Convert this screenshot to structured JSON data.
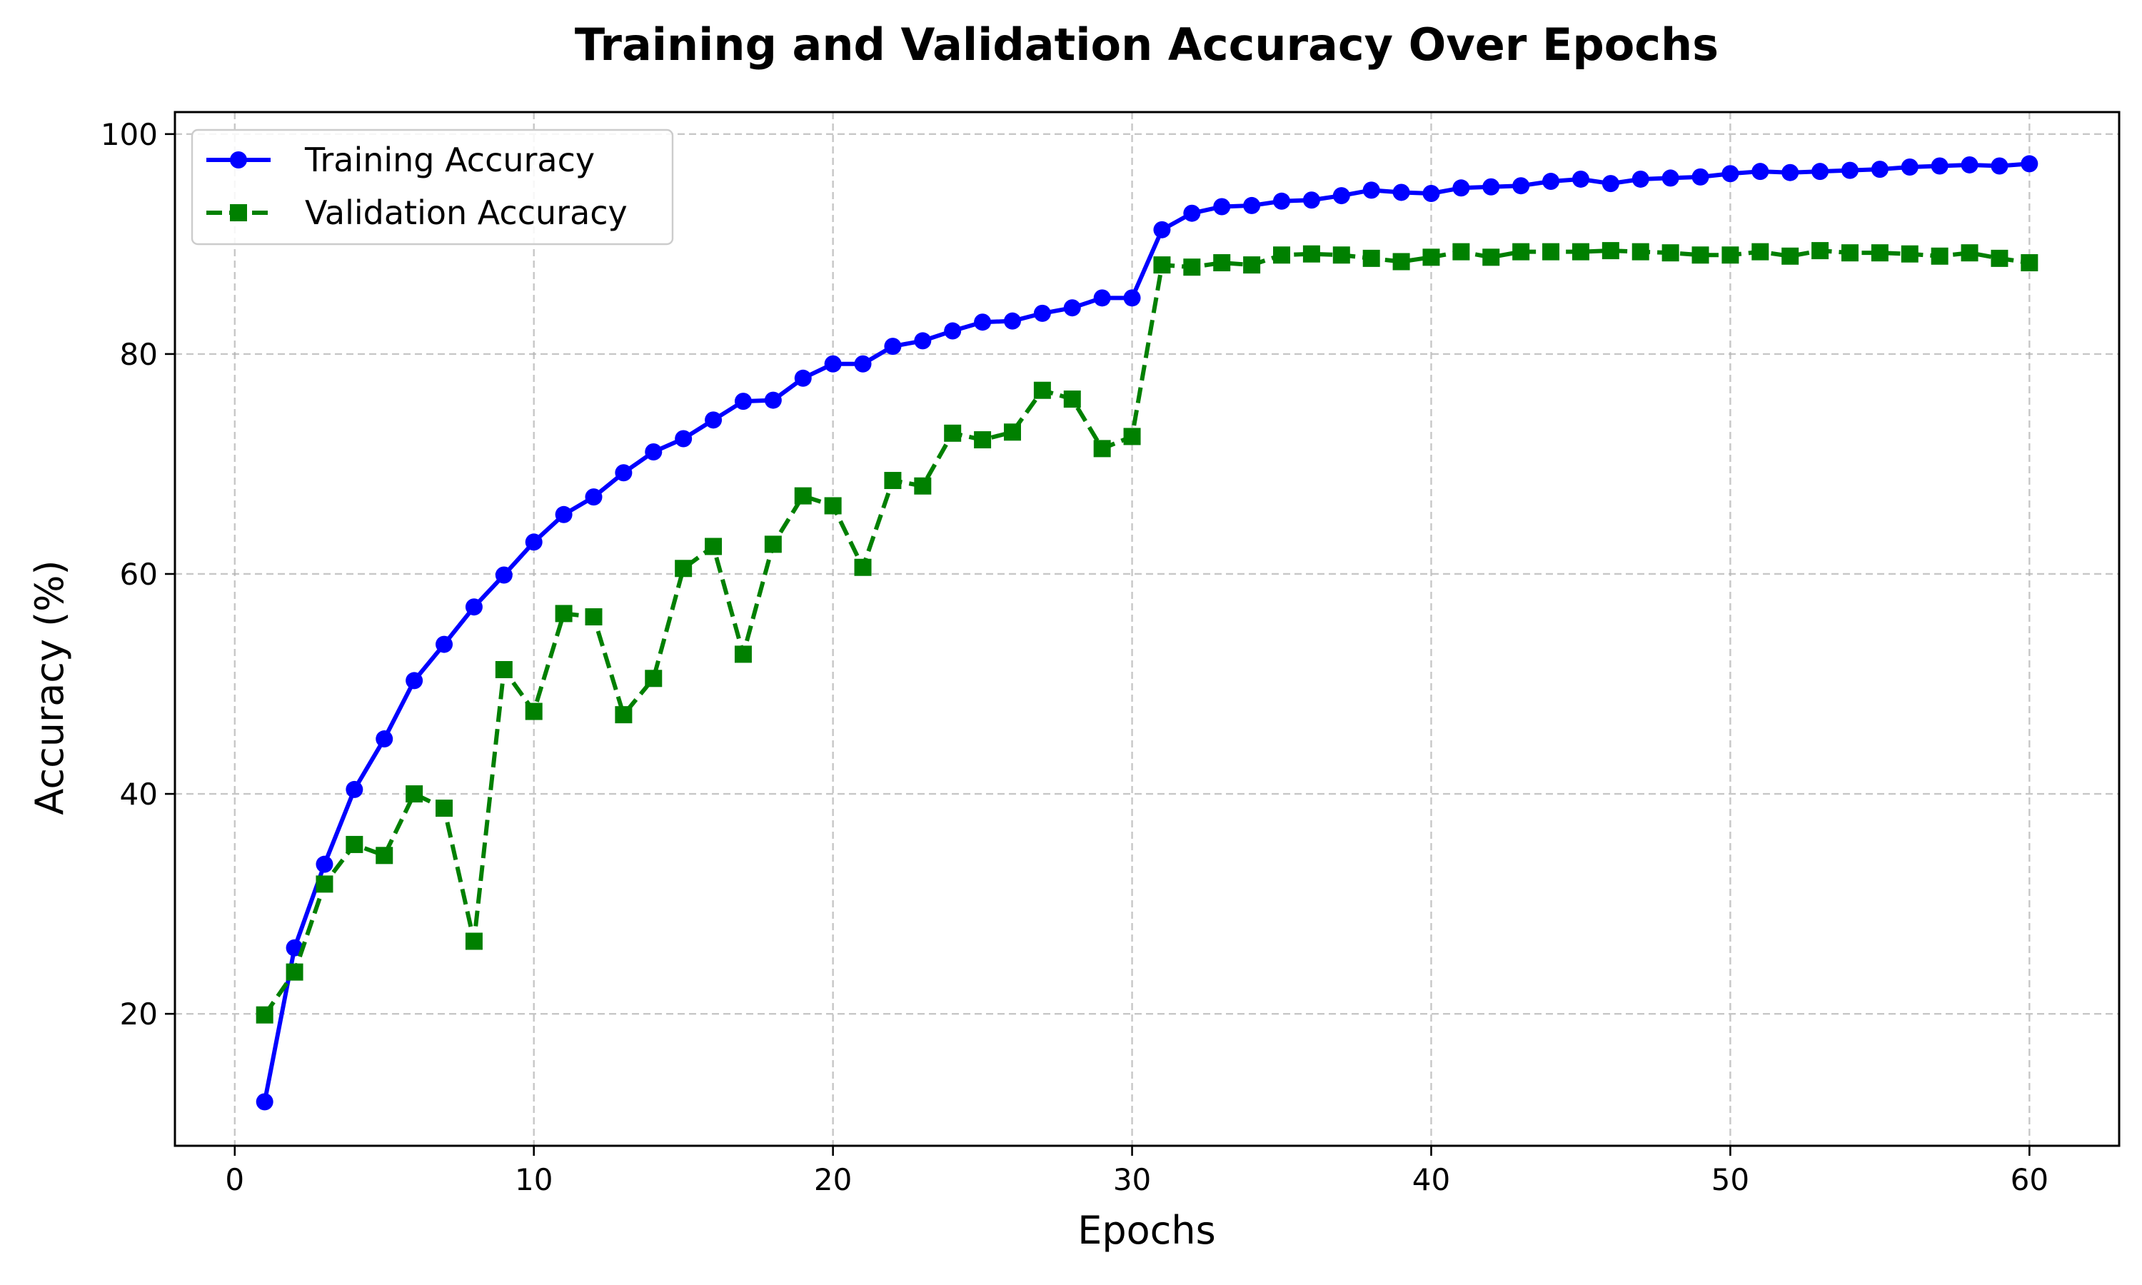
{
  "chart_data": {
    "type": "line",
    "title": "Training and Validation Accuracy Over Epochs",
    "xlabel": "Epochs",
    "ylabel": "Accuracy (%)",
    "xlim": [
      -2,
      63
    ],
    "ylim": [
      8,
      102
    ],
    "x_ticks": [
      0,
      10,
      20,
      30,
      40,
      50,
      60
    ],
    "y_ticks": [
      20,
      40,
      60,
      80,
      100
    ],
    "grid": true,
    "legend_position": "upper-left",
    "x": [
      1,
      2,
      3,
      4,
      5,
      6,
      7,
      8,
      9,
      10,
      11,
      12,
      13,
      14,
      15,
      16,
      17,
      18,
      19,
      20,
      21,
      22,
      23,
      24,
      25,
      26,
      27,
      28,
      29,
      30,
      31,
      32,
      33,
      34,
      35,
      36,
      37,
      38,
      39,
      40,
      41,
      42,
      43,
      44,
      45,
      46,
      47,
      48,
      49,
      50,
      51,
      52,
      53,
      54,
      55,
      56,
      57,
      58,
      59,
      60
    ],
    "series": [
      {
        "name": "Training Accuracy",
        "color": "#0000ff",
        "line_style": "solid",
        "marker": "circle",
        "values": [
          12.0,
          26.0,
          33.6,
          40.4,
          45.0,
          50.3,
          53.6,
          57.0,
          59.9,
          62.9,
          65.4,
          67.0,
          69.2,
          71.1,
          72.3,
          74.0,
          75.7,
          75.8,
          77.8,
          79.1,
          79.1,
          80.7,
          81.2,
          82.1,
          82.9,
          83.0,
          83.7,
          84.2,
          85.1,
          85.1,
          91.3,
          92.8,
          93.4,
          93.5,
          93.9,
          94.0,
          94.4,
          94.9,
          94.7,
          94.6,
          95.1,
          95.2,
          95.3,
          95.7,
          95.9,
          95.5,
          95.9,
          96.0,
          96.1,
          96.4,
          96.6,
          96.5,
          96.6,
          96.7,
          96.8,
          97.0,
          97.1,
          97.2,
          97.1,
          97.3
        ]
      },
      {
        "name": "Validation Accuracy",
        "color": "#008000",
        "line_style": "dashed",
        "marker": "square",
        "values": [
          19.9,
          23.8,
          31.8,
          35.4,
          34.4,
          40.0,
          38.7,
          26.6,
          51.3,
          47.5,
          56.4,
          56.1,
          47.2,
          50.5,
          60.5,
          62.5,
          52.7,
          62.7,
          67.1,
          66.2,
          60.6,
          68.5,
          68.0,
          72.8,
          72.2,
          72.9,
          76.7,
          75.9,
          71.4,
          72.5,
          88.1,
          87.9,
          88.3,
          88.1,
          89.0,
          89.1,
          89.0,
          88.7,
          88.4,
          88.8,
          89.3,
          88.8,
          89.3,
          89.3,
          89.3,
          89.4,
          89.3,
          89.2,
          89.0,
          89.0,
          89.3,
          88.9,
          89.4,
          89.2,
          89.2,
          89.1,
          88.9,
          89.2,
          88.7,
          88.3
        ]
      }
    ]
  }
}
